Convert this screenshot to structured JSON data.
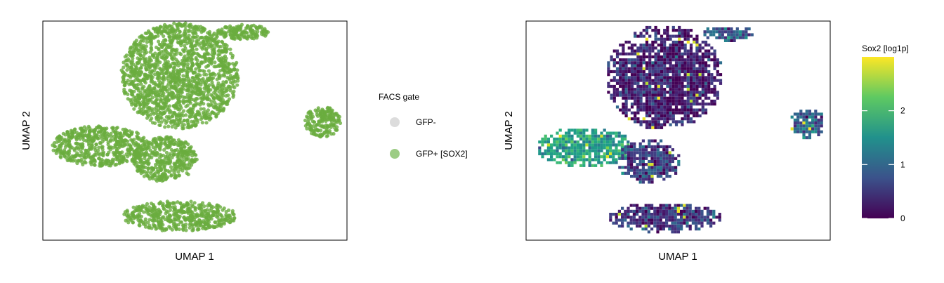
{
  "chart_data": [
    {
      "type": "scatter",
      "xlabel": "UMAP 1",
      "ylabel": "UMAP 2",
      "axis_ticks": false,
      "grid": false,
      "legend": {
        "title": "FACS gate",
        "placement": "right",
        "entries": [
          {
            "label": "GFP-",
            "color": "#dcdcdc"
          },
          {
            "label": "GFP+ [SOX2]",
            "color": "#9ccc84"
          }
        ]
      },
      "point_color": "#6aad3f",
      "clusters": [
        {
          "name": "large-upper",
          "cx": 0.45,
          "cy": 0.75,
          "rx": 0.29,
          "ry": 0.21
        },
        {
          "name": "small-top",
          "cx": 0.66,
          "cy": 0.95,
          "rx": 0.13,
          "ry": 0.03
        },
        {
          "name": "left-elongated",
          "cx": 0.19,
          "cy": 0.43,
          "rx": 0.24,
          "ry": 0.08
        },
        {
          "name": "left-small",
          "cx": 0.4,
          "cy": 0.37,
          "rx": 0.16,
          "ry": 0.09
        },
        {
          "name": "bottom",
          "cx": 0.45,
          "cy": 0.11,
          "rx": 0.28,
          "ry": 0.06
        },
        {
          "name": "right",
          "cx": 0.92,
          "cy": 0.54,
          "rx": 0.09,
          "ry": 0.06
        }
      ]
    },
    {
      "type": "heatmap",
      "xlabel": "UMAP 1",
      "ylabel": "UMAP 2",
      "axis_ticks": false,
      "grid": false,
      "colorbar": {
        "title": "Sox2 [log1p]",
        "placement": "right",
        "range": [
          0,
          3
        ],
        "ticks": [
          "0",
          "1",
          "2"
        ],
        "tick_values": [
          0,
          1,
          2
        ],
        "colormap": "viridis"
      },
      "clusters": [
        {
          "name": "large-upper",
          "cx": 0.45,
          "cy": 0.75,
          "rx": 0.29,
          "ry": 0.21,
          "mean_value": 0.25
        },
        {
          "name": "small-top",
          "cx": 0.66,
          "cy": 0.95,
          "rx": 0.13,
          "ry": 0.03,
          "mean_value": 0.9
        },
        {
          "name": "left-elongated",
          "cx": 0.19,
          "cy": 0.43,
          "rx": 0.24,
          "ry": 0.08,
          "mean_value": 1.7
        },
        {
          "name": "left-small",
          "cx": 0.4,
          "cy": 0.37,
          "rx": 0.16,
          "ry": 0.09,
          "mean_value": 0.6
        },
        {
          "name": "bottom",
          "cx": 0.45,
          "cy": 0.11,
          "rx": 0.28,
          "ry": 0.06,
          "mean_value": 0.5
        },
        {
          "name": "right",
          "cx": 0.92,
          "cy": 0.54,
          "rx": 0.09,
          "ry": 0.06,
          "mean_value": 0.9
        }
      ]
    }
  ]
}
